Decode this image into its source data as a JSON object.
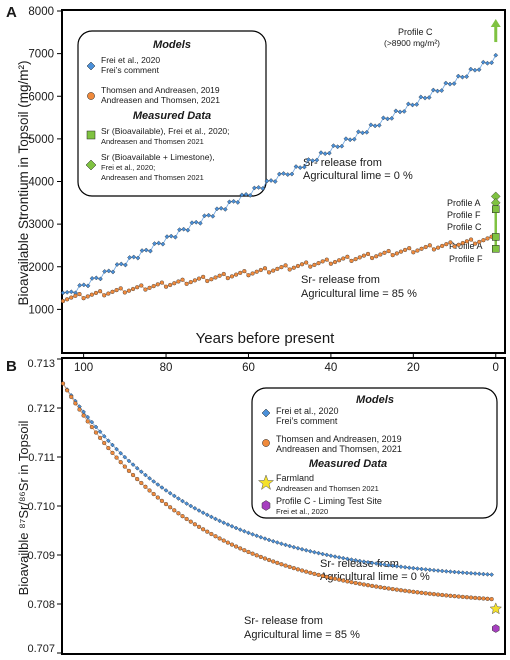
{
  "panels": [
    {
      "panel_label": "A",
      "ylabel": "Bioavailable Strontium in Topsoil (mg/m²)",
      "xlabel": "Years before present",
      "legend": {
        "models_heading": "Models",
        "measured_heading": "Measured Data",
        "entries": [
          {
            "line1": "Frei et al., 2020",
            "line2": "Frei’s comment",
            "line3": "",
            "marker": "diamond",
            "color": "#4a90d9"
          },
          {
            "line1": "Thomsen and Andreasen, 2019",
            "line2": "Andreasen and Thomsen, 2021",
            "line3": "",
            "marker": "circle",
            "color": "#f08a3c"
          },
          {
            "line1": "Sr (Bioavailable), Frei et al., 2020;",
            "line2": "Andreasen and Thomsen 2021",
            "line3": "",
            "marker": "square",
            "color": "#7fc241"
          },
          {
            "line1": "Sr (Bioavailable + Limestone),",
            "line2": "Frei et al., 2020;",
            "line3": "Andreasen and Thomsen 2021",
            "marker": "diamond",
            "color": "#7fc241"
          }
        ]
      },
      "annotations": [
        "Sr- release from",
        "Agricultural lime = 0 %",
        "Sr- release from",
        "Agricultural lime = 85 %"
      ],
      "profile_labels": [
        "Profile C",
        "(>8900 mg/m²)",
        "Profile A",
        "Profile F",
        "Profile C",
        "Profile A",
        "Profile F"
      ]
    },
    {
      "panel_label": "B",
      "ylabel": "Bioavailble ⁸⁷Sr/⁸⁶Sr in Topsoil",
      "legend": {
        "models_heading": "Models",
        "measured_heading": "Measured Data",
        "entries": [
          {
            "line1": "Frei et al., 2020",
            "line2": "Frei’s comment",
            "line3": "",
            "marker": "diamond",
            "color": "#4a90d9"
          },
          {
            "line1": "Thomsen and Andreasen, 2019",
            "line2": "Andreasen and Thomsen, 2021",
            "line3": "",
            "marker": "circle",
            "color": "#f08a3c"
          },
          {
            "line1": "Farmland",
            "line2": "Andreasen and Thomsen 2021",
            "line3": "",
            "marker": "star",
            "color": "#f5e12a"
          },
          {
            "line1": "Profile C - Liming Test Site",
            "line2": "Frei et al., 2020",
            "line3": "",
            "marker": "hexagon",
            "color": "#a63fbf"
          }
        ]
      },
      "annotations": [
        "Sr- release from",
        "Agricultural lime = 0 %",
        "Sr- release from",
        "Agricultural lime = 85 %"
      ]
    }
  ],
  "chart_data": [
    {
      "type": "scatter",
      "title": "",
      "xlabel": "Years before present",
      "ylabel": "Bioavailable Strontium in Topsoil (mg/m²)",
      "xlim": [
        105,
        -2
      ],
      "ylim": [
        0,
        8000
      ],
      "x_ticks": [],
      "y_ticks": [
        1000,
        2000,
        3000,
        4000,
        5000,
        6000,
        7000,
        8000
      ],
      "series": [
        {
          "name": "Frei et al., 2020 Frei’s comment",
          "shape": "staircase",
          "color": "#4a90d9",
          "x_start": 105,
          "x_end": 0,
          "y_start": 1400,
          "y_end": 6950,
          "n_points": 105
        },
        {
          "name": "Thomsen and Andreasen, 2019 Andreasen and Thomsen, 2021",
          "shape": "sawtooth",
          "color": "#f08a3c",
          "x_start": 105,
          "x_end": 1,
          "y_start": 1250,
          "y_end": 2650,
          "n_points": 105
        }
      ],
      "measured": [
        {
          "label": "Profile A",
          "x": 0,
          "y": 3650,
          "marker": "diamond",
          "color": "#7fc241"
        },
        {
          "label": "Profile F",
          "x": 0,
          "y": 3500,
          "marker": "diamond",
          "color": "#7fc241"
        },
        {
          "label": "Profile C",
          "x": 0,
          "y": 3350,
          "marker": "square",
          "color": "#7fc241"
        },
        {
          "label": "Profile A",
          "x": 0,
          "y": 2700,
          "marker": "square",
          "color": "#7fc241"
        },
        {
          "label": "Profile F",
          "x": 0,
          "y": 2420,
          "marker": "square",
          "color": "#7fc241"
        }
      ],
      "profile_c_arrow": {
        "label": "Profile C (>8900 mg/m²)",
        "x": 0,
        "y": 7600
      }
    },
    {
      "type": "scatter",
      "title": "",
      "xlabel": "",
      "ylabel": "Bioavailble 87Sr/86Sr in Topsoil",
      "xlim": [
        105,
        -2
      ],
      "ylim": [
        0.707,
        0.713
      ],
      "x_ticks": [
        100,
        80,
        60,
        40,
        20,
        0
      ],
      "y_ticks": [
        0.707,
        0.708,
        0.709,
        0.71,
        0.711,
        0.712,
        0.713
      ],
      "series": [
        {
          "name": "Frei et al., 2020 Frei’s comment",
          "shape": "decay",
          "color": "#4a90d9",
          "x_start": 105,
          "x_end": 1,
          "y_start": 0.7125,
          "y_end": 0.7086,
          "n_points": 105
        },
        {
          "name": "Thomsen and Andreasen, 2019 Andreasen and Thomsen, 2021",
          "shape": "decay",
          "color": "#f08a3c",
          "x_start": 105,
          "x_end": 1,
          "y_start": 0.7125,
          "y_end": 0.7081,
          "n_points": 105
        }
      ],
      "measured": [
        {
          "label": "Farmland",
          "x": 0,
          "y": 0.7079,
          "marker": "star",
          "color": "#f5e12a"
        },
        {
          "label": "Profile C - Liming Test Site",
          "x": 0,
          "y": 0.7075,
          "marker": "hexagon",
          "color": "#a63fbf"
        }
      ]
    }
  ]
}
